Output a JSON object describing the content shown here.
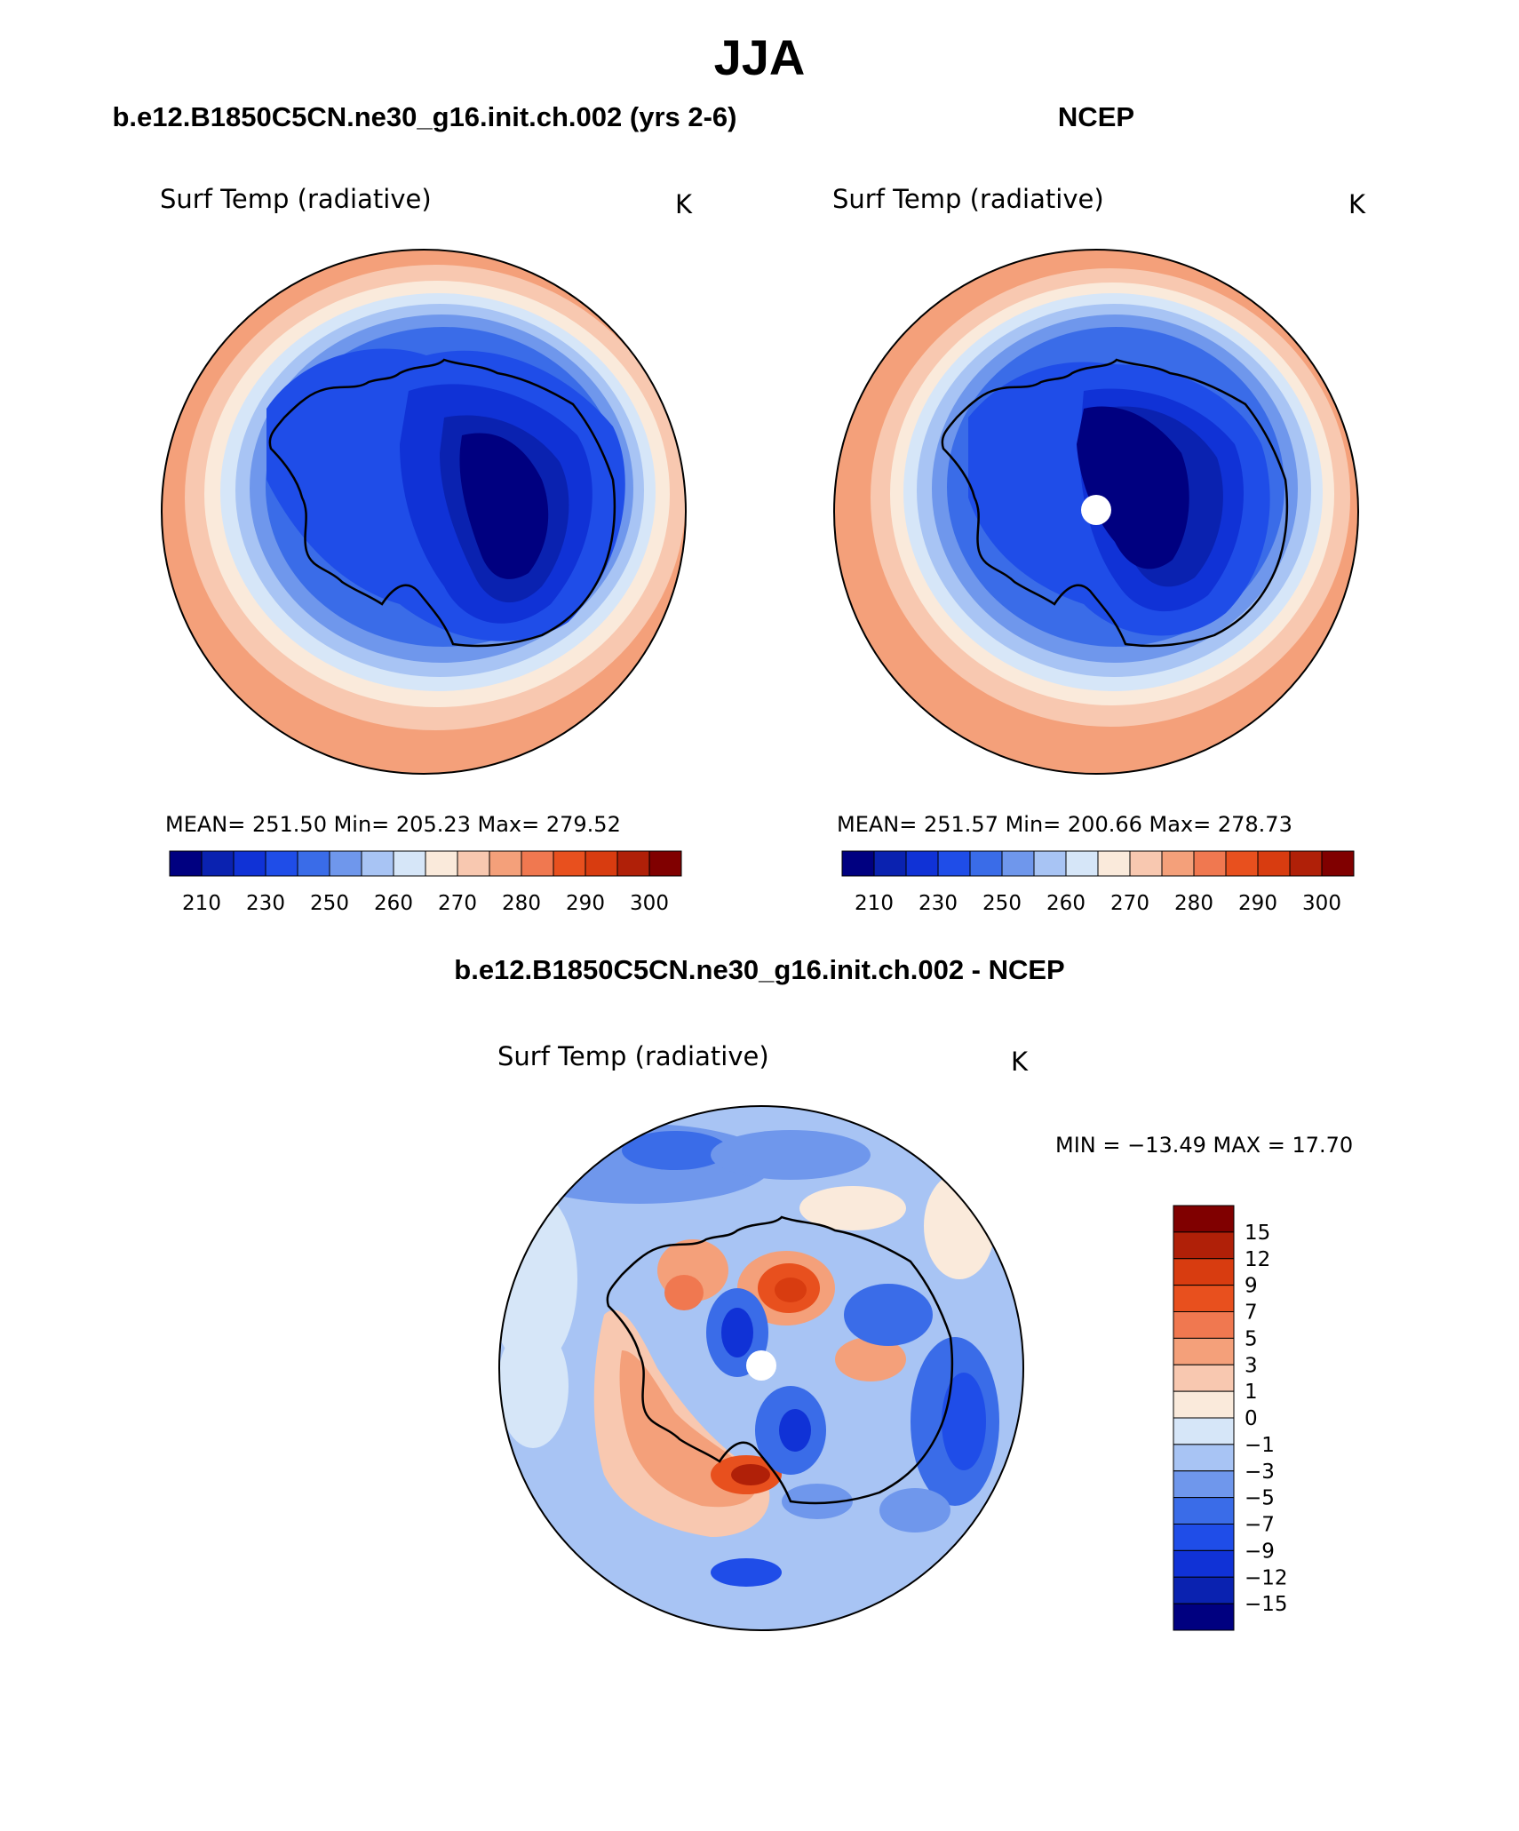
{
  "figure_title": "JJA",
  "panels": {
    "model": {
      "case_title": "b.e12.B1850C5CN.ne30_g16.init.ch.002 (yrs 2-6)",
      "variable": "Surf Temp (radiative)",
      "units": "K",
      "stats_text": "MEAN= 251.50   Min= 205.23   Max= 279.52"
    },
    "obs": {
      "case_title": "NCEP",
      "variable": "Surf Temp (radiative)",
      "units": "K",
      "stats_text": "MEAN= 251.57   Min= 200.66   Max= 278.73"
    },
    "diff": {
      "case_title": "b.e12.B1850C5CN.ne30_g16.init.ch.002 - NCEP",
      "variable": "Surf Temp (radiative)",
      "units": "K",
      "stats_text": "MIN = −13.49  MAX =   17.70"
    }
  },
  "colorbar_abs": {
    "colors": [
      "#000080",
      "#0a22b0",
      "#1032d6",
      "#1f4de8",
      "#3a6ce8",
      "#6f97ec",
      "#a8c4f4",
      "#d6e6f8",
      "#faeadb",
      "#f8c8b0",
      "#f4a07a",
      "#f07850",
      "#e8501e",
      "#d83c10",
      "#b02008",
      "#800000"
    ],
    "tick_labels": [
      "210",
      "230",
      "250",
      "260",
      "270",
      "280",
      "290",
      "300"
    ]
  },
  "colorbar_diff": {
    "colors": [
      "#800000",
      "#b02008",
      "#d83c10",
      "#e8501e",
      "#f07850",
      "#f4a07a",
      "#f8c8b0",
      "#faeadb",
      "#d6e6f8",
      "#a8c4f4",
      "#6f97ec",
      "#3a6ce8",
      "#1f4de8",
      "#1032d6",
      "#0a22b0",
      "#000080"
    ],
    "tick_labels": [
      "15",
      "12",
      "9",
      "7",
      "5",
      "3",
      "1",
      "0",
      "−1",
      "−3",
      "−5",
      "−7",
      "−9",
      "−12",
      "−15"
    ]
  }
}
